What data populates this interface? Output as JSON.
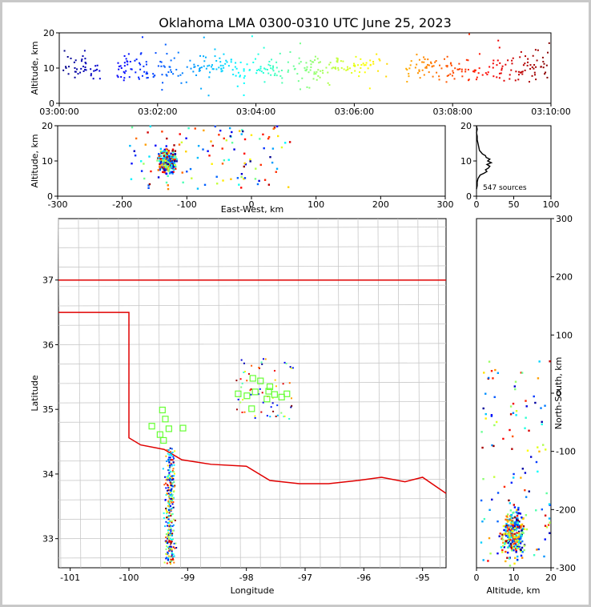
{
  "chart_data": [
    {
      "panel": "altitude-vs-time",
      "type": "scatter",
      "title": "Oklahoma LMA 0300-0310 UTC June 25, 2023",
      "ylabel": "Altitude, km",
      "xlabel": "",
      "xlim": [
        "03:00:00",
        "03:10:00"
      ],
      "ylim": [
        0,
        20
      ],
      "xticks": [
        "03:00:00",
        "03:02:00",
        "03:04:00",
        "03:06:00",
        "03:08:00",
        "03:10:00"
      ],
      "yticks": [
        0,
        10,
        20
      ],
      "colormap": "jet (colored by time)",
      "approx_groups": [
        {
          "t_start": "03:00:05",
          "t_end": "03:00:50",
          "alt_range": [
            7,
            15
          ]
        },
        {
          "t_start": "03:01:10",
          "t_end": "03:02:40",
          "alt_range": [
            3,
            20
          ]
        },
        {
          "t_start": "03:02:40",
          "t_end": "03:04:50",
          "alt_range": [
            1,
            20
          ]
        },
        {
          "t_start": "03:04:50",
          "t_end": "03:06:40",
          "alt_range": [
            2,
            19
          ]
        },
        {
          "t_start": "03:07:00",
          "t_end": "03:08:20",
          "alt_range": [
            6,
            14
          ]
        },
        {
          "t_start": "03:08:20",
          "t_end": "03:09:58",
          "alt_range": [
            5,
            20
          ]
        }
      ]
    },
    {
      "panel": "altitude-vs-east-west",
      "type": "scatter",
      "xlabel": "East-West, km",
      "ylabel": "Altitude, km",
      "xlim": [
        -300,
        300
      ],
      "ylim": [
        0,
        20
      ],
      "xticks": [
        -300,
        -200,
        -100,
        0,
        100,
        200,
        300
      ],
      "yticks": [
        0,
        10,
        20
      ],
      "dense_cluster": {
        "x_center": -130,
        "alt_center": 10
      }
    },
    {
      "panel": "altitude-histogram",
      "type": "line",
      "xlim": [
        0,
        100
      ],
      "ylim": [
        0,
        20
      ],
      "xticks": [
        0,
        50,
        100
      ],
      "yticks": [
        0,
        10,
        20
      ],
      "annotation": "547 sources",
      "profile": [
        [
          0,
          2
        ],
        [
          1,
          3
        ],
        [
          1,
          4
        ],
        [
          2,
          5
        ],
        [
          5,
          6
        ],
        [
          10,
          6.5
        ],
        [
          14,
          7
        ],
        [
          12,
          7.5
        ],
        [
          16,
          8
        ],
        [
          18,
          8.5
        ],
        [
          14,
          9
        ],
        [
          20,
          9.5
        ],
        [
          15,
          10
        ],
        [
          18,
          10.5
        ],
        [
          13,
          11
        ],
        [
          12,
          11.5
        ],
        [
          8,
          12
        ],
        [
          6,
          12.5
        ],
        [
          4,
          13
        ],
        [
          3,
          14
        ],
        [
          2,
          15
        ],
        [
          1,
          16
        ],
        [
          1,
          17
        ],
        [
          0,
          18
        ],
        [
          1,
          19
        ],
        [
          0,
          20
        ]
      ]
    },
    {
      "panel": "plan-view-map",
      "type": "scatter",
      "xlabel": "Longitude",
      "ylabel": "Latitude",
      "xlim": [
        -101.2,
        -94.6
      ],
      "ylim": [
        32.55,
        37.95
      ],
      "xticks": [
        -101,
        -100,
        -99,
        -98,
        -97,
        -96,
        -95
      ],
      "yticks": [
        33,
        34,
        35,
        36,
        37
      ],
      "station_markers": [
        [
          -97.89,
          35.48
        ],
        [
          -97.76,
          35.44
        ],
        [
          -97.6,
          35.35
        ],
        [
          -97.52,
          35.23
        ],
        [
          -97.62,
          35.28
        ],
        [
          -97.99,
          35.21
        ],
        [
          -97.85,
          35.27
        ],
        [
          -97.4,
          35.19
        ],
        [
          -97.31,
          35.24
        ],
        [
          -97.91,
          35.01
        ],
        [
          -97.65,
          35.16
        ],
        [
          -98.14,
          35.24
        ],
        [
          -99.43,
          34.99
        ],
        [
          -99.38,
          34.85
        ],
        [
          -99.61,
          34.74
        ],
        [
          -99.32,
          34.7
        ],
        [
          -99.47,
          34.61
        ],
        [
          -99.41,
          34.52
        ],
        [
          -99.08,
          34.71
        ]
      ],
      "main_cluster": {
        "lon": -99.3,
        "lat_range": [
          32.6,
          34.4
        ]
      },
      "secondary_cluster": {
        "lon_range": [
          -98.2,
          -97.2
        ],
        "lat_range": [
          34.85,
          35.8
        ]
      }
    },
    {
      "panel": "north-south-vs-altitude",
      "type": "scatter",
      "xlabel": "Altitude, km",
      "ylabel": "North-South, km",
      "xlim": [
        0,
        20
      ],
      "ylim": [
        -300,
        300
      ],
      "xticks": [
        0,
        10,
        20
      ],
      "yticks": [
        -300,
        -200,
        -100,
        0,
        100,
        200,
        300
      ],
      "dense_cluster": {
        "alt_center": 10,
        "ns_center": -240
      }
    }
  ]
}
